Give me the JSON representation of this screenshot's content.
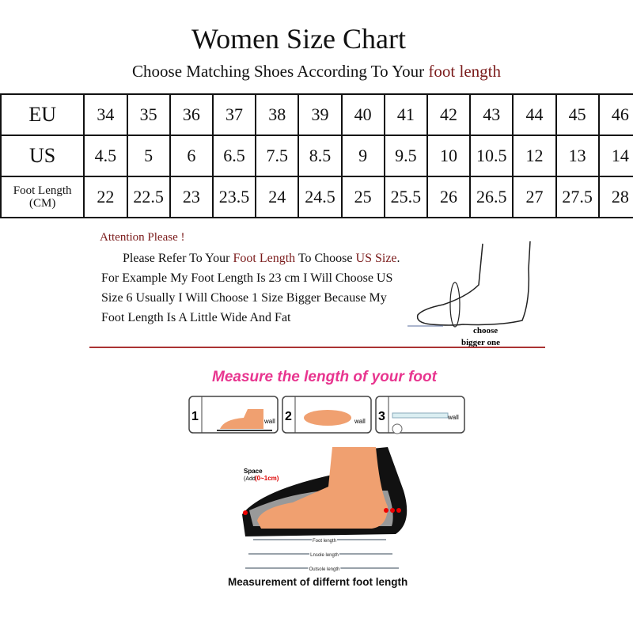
{
  "title": "Women Size Chart",
  "subtitle": {
    "prefix": "Choose Matching Shoes According To Your ",
    "highlight": "foot length"
  },
  "table": {
    "rows": [
      {
        "label": "EU",
        "values": [
          "34",
          "35",
          "36",
          "37",
          "38",
          "39",
          "40",
          "41",
          "42",
          "43",
          "44",
          "45",
          "46"
        ]
      },
      {
        "label": "US",
        "values": [
          "4.5",
          "5",
          "6",
          "6.5",
          "7.5",
          "8.5",
          "9",
          "9.5",
          "10",
          "10.5",
          "12",
          "13",
          "14"
        ]
      },
      {
        "label": "Foot Length",
        "sublabel": "(CM)",
        "values": [
          "22",
          "22.5",
          "23",
          "23.5",
          "24",
          "24.5",
          "25",
          "25.5",
          "26",
          "26.5",
          "27",
          "27.5",
          "28"
        ]
      }
    ]
  },
  "attention": {
    "heading": "Attention Please !",
    "line1": {
      "a": "Please Refer To Your ",
      "b": "Foot Length",
      "c": " To Choose ",
      "d": "US Size",
      "e": "."
    },
    "line2": "For Example My Foot Length Is 23 cm I Will Choose US",
    "line3": "Size 6 Usually I Will Choose 1 Size Bigger Because My",
    "line4": "Foot Length Is A Little Wide And Fat",
    "foot_caption_1": "choose",
    "foot_caption_2": "bigger one"
  },
  "measure": {
    "title": "Measure the length of your foot",
    "steps": [
      {
        "num": "1",
        "label": "wall"
      },
      {
        "num": "2",
        "label": "wall"
      },
      {
        "num": "3",
        "label": "wall"
      }
    ],
    "space_label": "Space",
    "space_add": "(Add",
    "space_value": "(0~1cm)",
    "foot_length": "Foot length",
    "insole_length": "Lnsole length",
    "outsole_length": "Outsole length",
    "caption": "Measurement of differnt foot length"
  },
  "colors": {
    "accent_red": "#7a1a1a",
    "title_pink": "#e8358f",
    "foot_skin": "#f0a070"
  }
}
